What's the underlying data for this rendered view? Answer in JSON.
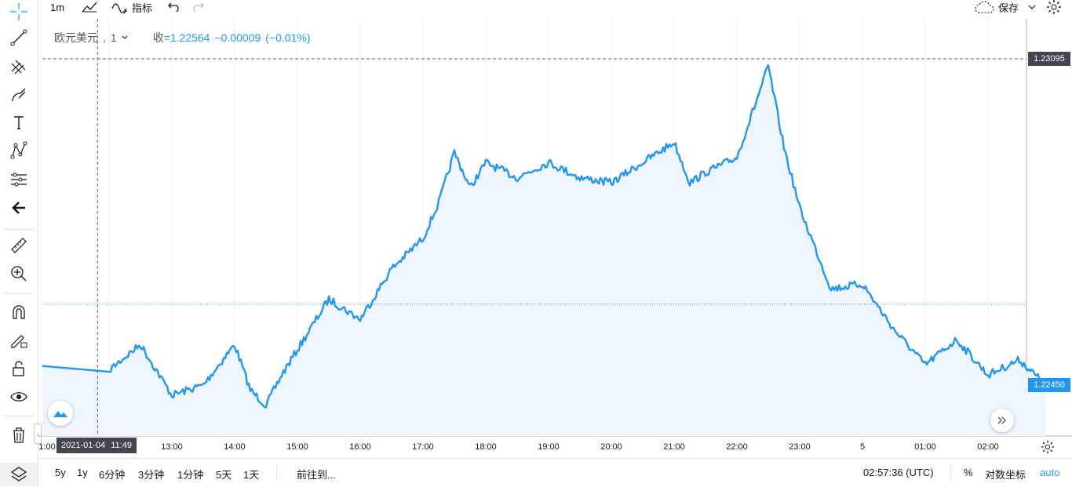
{
  "toolbar": {
    "interval": "1m",
    "indicators_label": "指标",
    "save_label": "保存"
  },
  "legend": {
    "symbol": "欧元美元",
    "interval": "1",
    "close_label": "收",
    "close_value": "=1.22564",
    "change": "−0.00009",
    "change_pct": "(−0.01%)"
  },
  "price_axis": {
    "dashed_line_label": "1.23095",
    "last_price_label": "1.22450"
  },
  "time_axis": {
    "labels": [
      "1:00",
      "13:00",
      "14:00",
      "15:00",
      "16:00",
      "17:00",
      "18:00",
      "19:00",
      "20:00",
      "21:00",
      "22:00",
      "23:00",
      "5",
      "01:00",
      "02:00"
    ],
    "crosshair_date": "2021-01-04",
    "crosshair_time": "11:49"
  },
  "bottom": {
    "ranges": [
      "5y",
      "1y",
      "6分钟",
      "3分钟",
      "1分钟",
      "5天",
      "1天"
    ],
    "goto": "前往到...",
    "clock": "02:57:36 (UTC)",
    "percent": "%",
    "log": "对数坐标",
    "auto": "auto"
  },
  "colors": {
    "line": "#2196f3",
    "area": "#eef5fd",
    "axis_label": "#434651"
  },
  "left_tools": [
    "crosshair-icon",
    "trendline-icon",
    "fib-icon",
    "brush-icon",
    "text-icon",
    "pattern-icon",
    "prediction-icon",
    "back-arrow-icon",
    "ruler-icon",
    "zoom-in-icon",
    "magnet-icon",
    "lock-pencil-icon",
    "unlock-icon",
    "eye-icon",
    "trash-icon",
    "layers-icon"
  ],
  "chart_data": {
    "type": "area",
    "symbol": "欧元美元",
    "x_range": [
      "12:00",
      "02:57"
    ],
    "y_range": [
      1.221,
      1.233
    ],
    "x": [
      "12:00",
      "12:30",
      "13:00",
      "13:30",
      "14:00",
      "14:15",
      "14:30",
      "14:45",
      "15:00",
      "15:30",
      "16:00",
      "16:30",
      "17:00",
      "17:15",
      "17:30",
      "17:45",
      "18:00",
      "18:30",
      "19:00",
      "19:30",
      "20:00",
      "20:30",
      "21:00",
      "21:15",
      "21:30",
      "22:00",
      "22:30",
      "22:45",
      "23:00",
      "23:30",
      "00:00",
      "00:30",
      "01:00",
      "01:30",
      "02:00",
      "02:30",
      "02:55"
    ],
    "values": [
      1.2248,
      1.2253,
      1.2243,
      1.2245,
      1.2253,
      1.2244,
      1.2241,
      1.2247,
      1.2252,
      1.2262,
      1.2258,
      1.2268,
      1.2274,
      1.2281,
      1.2291,
      1.2284,
      1.2289,
      1.2286,
      1.2289,
      1.2286,
      1.2285,
      1.2289,
      1.2293,
      1.2285,
      1.2287,
      1.229,
      1.2308,
      1.2292,
      1.228,
      1.2264,
      1.2265,
      1.2256,
      1.2249,
      1.2254,
      1.2247,
      1.225,
      1.2245
    ],
    "last_price": 1.2245,
    "dashed_level": 1.23095,
    "dotted_level": 1.2261
  }
}
